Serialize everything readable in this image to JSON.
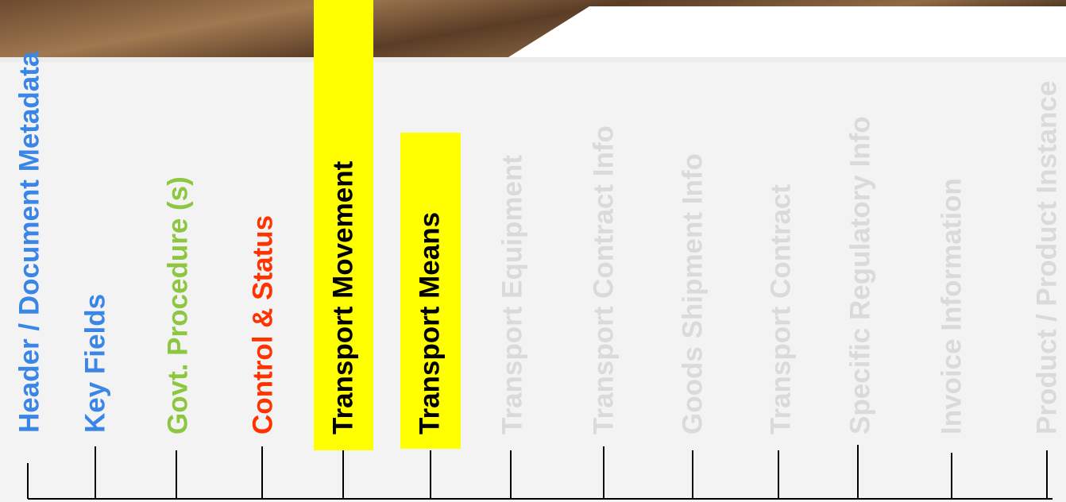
{
  "columns": [
    "Header /  Document Metadata",
    "Key Fields",
    "Govt. Procedure (s)",
    "Control & Status",
    "Transport Movement",
    "Transport Means",
    "Transport Equipment",
    "Transport Contract Info",
    "Goods Shipment Info",
    "Transport Contract",
    "Specific Regulatory Info",
    "Invoice Information",
    "Product / Product Instance"
  ]
}
